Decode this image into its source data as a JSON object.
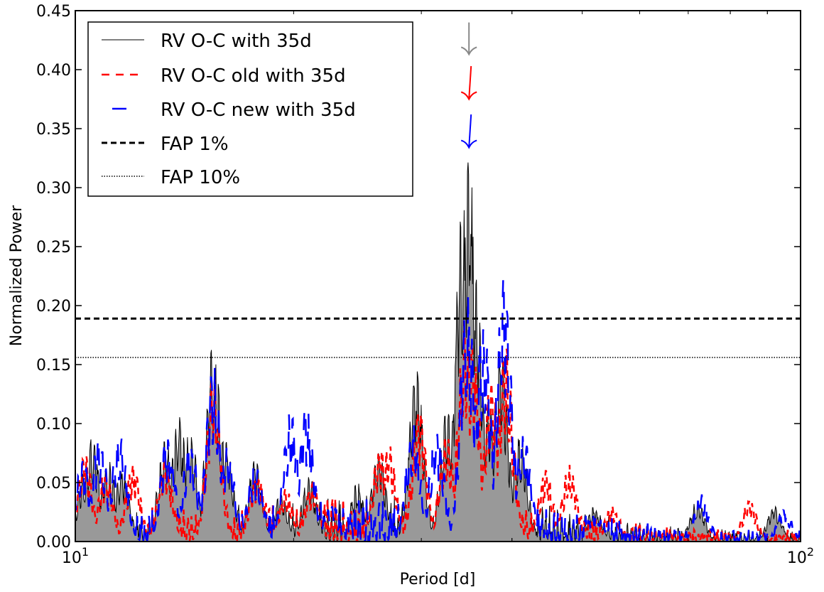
{
  "chart_data": {
    "type": "line",
    "xlabel": "Period [d]",
    "ylabel": "Normalized Power",
    "xscale": "log",
    "xlim": [
      10,
      100
    ],
    "ylim": [
      0,
      0.45
    ],
    "x_ticks": [
      {
        "value": 10,
        "base": "10",
        "exp": "1"
      },
      {
        "value": 100,
        "base": "10",
        "exp": "2"
      }
    ],
    "y_ticks": [
      "0.00",
      "0.05",
      "0.10",
      "0.15",
      "0.20",
      "0.25",
      "0.30",
      "0.35",
      "0.40",
      "0.45"
    ],
    "legend_position": "top-left",
    "series": [
      {
        "name": "RV O-C with 35d",
        "color": "#000000",
        "fill": "#999999",
        "style": "solid-filled",
        "peaks": [
          [
            10.3,
            0.06
          ],
          [
            10.55,
            0.088
          ],
          [
            11.1,
            0.07
          ],
          [
            11.6,
            0.06
          ],
          [
            13.3,
            0.09
          ],
          [
            13.9,
            0.107
          ],
          [
            14.4,
            0.095
          ],
          [
            15.5,
            0.169
          ],
          [
            16.1,
            0.09
          ],
          [
            17.7,
            0.07
          ],
          [
            19.2,
            0.04
          ],
          [
            21.0,
            0.055
          ],
          [
            24.5,
            0.05
          ],
          [
            26.2,
            0.075
          ],
          [
            29.5,
            0.148
          ],
          [
            32.6,
            0.115
          ],
          [
            34.2,
            0.288
          ],
          [
            34.9,
            0.326
          ],
          [
            35.6,
            0.225
          ],
          [
            37.2,
            0.12
          ],
          [
            38.6,
            0.16
          ],
          [
            41.0,
            0.09
          ],
          [
            52.0,
            0.03
          ],
          [
            72.0,
            0.035
          ],
          [
            92.0,
            0.03
          ]
        ]
      },
      {
        "name": "RV O-C old with 35d",
        "color": "#ff0000",
        "style": "dashed",
        "peaks": [
          [
            10.3,
            0.075
          ],
          [
            11.0,
            0.06
          ],
          [
            12.0,
            0.065
          ],
          [
            13.3,
            0.07
          ],
          [
            15.5,
            0.14
          ],
          [
            17.8,
            0.06
          ],
          [
            19.5,
            0.045
          ],
          [
            21.2,
            0.05
          ],
          [
            26.3,
            0.08
          ],
          [
            27.0,
            0.085
          ],
          [
            29.8,
            0.11
          ],
          [
            32.5,
            0.09
          ],
          [
            34.5,
            0.19
          ],
          [
            35.3,
            0.17
          ],
          [
            37.5,
            0.14
          ],
          [
            39.2,
            0.165
          ],
          [
            44.5,
            0.06
          ],
          [
            48.0,
            0.065
          ],
          [
            55.0,
            0.03
          ],
          [
            85.0,
            0.035
          ]
        ]
      },
      {
        "name": "RV O-C new with 35d",
        "color": "#0000ff",
        "style": "long-dashed",
        "peaks": [
          [
            10.25,
            0.07
          ],
          [
            10.8,
            0.09
          ],
          [
            11.5,
            0.092
          ],
          [
            13.4,
            0.09
          ],
          [
            14.4,
            0.085
          ],
          [
            15.5,
            0.15
          ],
          [
            16.2,
            0.08
          ],
          [
            17.7,
            0.065
          ],
          [
            19.8,
            0.11
          ],
          [
            20.8,
            0.115
          ],
          [
            22.5,
            0.03
          ],
          [
            29.2,
            0.1
          ],
          [
            31.5,
            0.095
          ],
          [
            34.7,
            0.212
          ],
          [
            36.5,
            0.19
          ],
          [
            39.0,
            0.225
          ],
          [
            41.5,
            0.09
          ],
          [
            52.0,
            0.025
          ],
          [
            73.0,
            0.04
          ],
          [
            95.0,
            0.027
          ]
        ]
      }
    ],
    "fap_lines": [
      {
        "name": "FAP 1%",
        "y": 0.189,
        "style": "dashed"
      },
      {
        "name": "FAP 10%",
        "y": 0.156,
        "style": "dotted"
      }
    ],
    "arrows": [
      {
        "x": 34.9,
        "y_top": 0.44,
        "y_bottom": 0.413,
        "color": "#888888"
      },
      {
        "x": 34.9,
        "y_top": 0.403,
        "y_bottom": 0.375,
        "color": "#ff0000"
      },
      {
        "x": 34.9,
        "y_top": 0.362,
        "y_bottom": 0.334,
        "color": "#0000ff"
      }
    ]
  }
}
